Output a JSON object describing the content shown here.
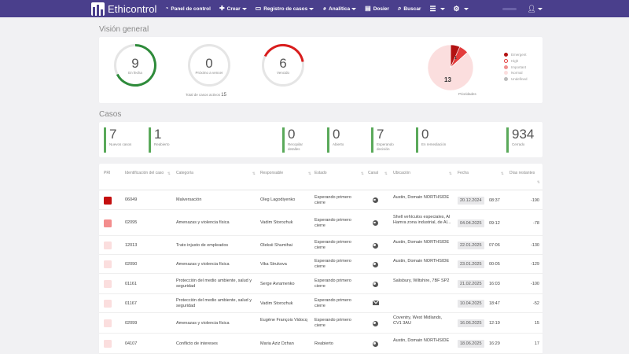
{
  "nav": {
    "brand": "Ethicontrol",
    "items": [
      {
        "label": "Panel de control",
        "icon": "dashboard-icon",
        "caret": false
      },
      {
        "label": "Crear",
        "icon": "plus-icon",
        "caret": true
      },
      {
        "label": "Registro de casos",
        "icon": "folder-icon",
        "caret": true
      },
      {
        "label": "Analítica",
        "icon": "pie-chart-icon",
        "caret": true
      },
      {
        "label": "Dosier",
        "icon": "id-card-icon",
        "caret": false
      },
      {
        "label": "Buscar",
        "icon": "search-icon",
        "caret": false
      }
    ]
  },
  "overview": {
    "title": "Visión general",
    "on_time": {
      "value": "9",
      "label": "En fecha"
    },
    "about_to_expire": {
      "value": "0",
      "label": "Próximo a vencer"
    },
    "expired": {
      "value": "6",
      "label": "Vencido"
    },
    "total_open_label": "Total de casos activos",
    "total_open_value": "15",
    "priorities_caption": "Prioridades",
    "legend": [
      {
        "label": "Emergent",
        "color": "#b31212"
      },
      {
        "label": "High",
        "color": "#e33b3b"
      },
      {
        "label": "Important",
        "color": "#f08f8f"
      },
      {
        "label": "Normal",
        "color": "#fbdede"
      },
      {
        "label": "Undefined",
        "color": "#bbbbbb"
      }
    ],
    "pie_labels": {
      "normal": "13",
      "high": "1",
      "emergent": "1"
    }
  },
  "chart_data": {
    "type": "pie",
    "title": "Prioridades",
    "categories": [
      "Emergent",
      "High",
      "Important",
      "Normal",
      "Undefined"
    ],
    "values": [
      1,
      1,
      0,
      13,
      0
    ]
  },
  "cases": {
    "title": "Casos",
    "kpis": [
      {
        "value": "7",
        "label": "Nuevos casos",
        "color": "#5aa95a"
      },
      {
        "value": "1",
        "label": "Reabierto",
        "color": "#5aa95a"
      },
      {
        "value": "0",
        "label": "Recopilar detalles",
        "color": "#5aa95a"
      },
      {
        "value": "0",
        "label": "Abierto",
        "color": "#5aa95a"
      },
      {
        "value": "7",
        "label": "Esperando decisión",
        "color": "#5aa95a"
      },
      {
        "value": "0",
        "label": "En remediación",
        "color": "#5aa95a"
      },
      {
        "value": "934",
        "label": "Cerrado",
        "color": "#5aa95a"
      }
    ]
  },
  "table": {
    "headers": {
      "pri": "PRI",
      "id": "Identificación del caso",
      "category": "Categoría",
      "responsible": "Responsable",
      "status": "Estado",
      "channel": "Canal",
      "location": "Ubicación",
      "date": "Fecha",
      "days": "Días restantes"
    },
    "rows": [
      {
        "color": "#c40f0f",
        "id": "06049",
        "category": "Malversación",
        "responsible": "Oleg Lagodiyenko",
        "status": "Esperando primero cierre",
        "channel": "globe",
        "location": "Austin, Domain NORTHSIDE",
        "date": "20.12.2024",
        "time": "08:37",
        "days": "-190"
      },
      {
        "color": "#f38d8d",
        "id": "02095",
        "category": "Amenazas y violencia física",
        "responsible": "Vadim Storozhuk",
        "status": "Esperando primero cierre",
        "channel": "globe",
        "location": "Shell vehículos especiales, Al Hamra zona industrial, de Al...",
        "date": "04.04.2025",
        "time": "09:12",
        "days": "-78"
      },
      {
        "color": "#fbdede",
        "id": "12013",
        "category": "Trato injusto de empleados",
        "responsible": "Oleksii Shumihai",
        "status": "Esperando primero cierre",
        "channel": "globe",
        "location": "Austin, Domain NORTHSIDE",
        "date": "22.01.2025",
        "time": "07:06",
        "days": "-130"
      },
      {
        "color": "#fbdede",
        "id": "02090",
        "category": "Amenazas y violencia física",
        "responsible": "Vika Strukova",
        "status": "Esperando primero cierre",
        "channel": "globe",
        "location": "Austin, Domain NORTHSIDE",
        "date": "23.01.2025",
        "time": "00:05",
        "days": "-129"
      },
      {
        "color": "#fbdede",
        "id": "01161",
        "category": "Protección del medio ambiente, salud y seguridad",
        "responsible": "Serge Avramenko",
        "status": "Esperando primero cierre",
        "channel": "globe",
        "location": "Salisbury, Wiltshire, 7BF SP2",
        "date": "21.02.2025",
        "time": "16:03",
        "days": "-100"
      },
      {
        "color": "#fbdede",
        "id": "01167",
        "category": "Protección del medio ambiente, salud y seguridad",
        "responsible": "Vadim Storozhuk",
        "status": "Esperando primero cierre",
        "channel": "mail",
        "location": "",
        "date": "10.04.2025",
        "time": "18:47",
        "days": "-52"
      },
      {
        "color": "#fbdede",
        "id": "02099",
        "category": "Amenazas y violencia física",
        "responsible": "Eugène François Vidocq",
        "status": "Esperando primero cierre",
        "channel": "globe",
        "location": "Coventry, West Midlands, CV1 3AU",
        "date": "16.06.2025",
        "time": "12:19",
        "days": "15"
      },
      {
        "color": "#fbdede",
        "id": "04107",
        "category": "Conflicto de intereses",
        "responsible": "Maria Aziz Dzhan",
        "status": "Reabierto",
        "channel": "globe",
        "location": "Austin, Domain NORTHSIDE",
        "date": "18.06.2025",
        "time": "16:29",
        "days": "17"
      }
    ]
  }
}
